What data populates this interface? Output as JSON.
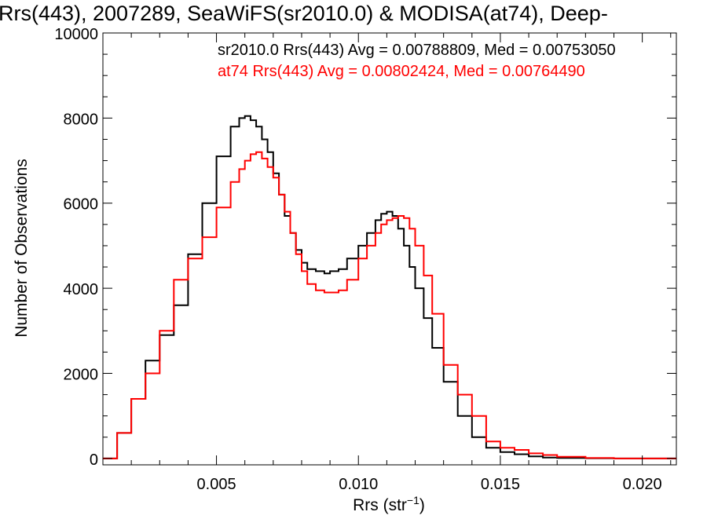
{
  "chart_data": {
    "type": "line",
    "title": "Rrs(443), 2007289, SeaWiFS(sr2010.0) & MODISA(at74), Deep-",
    "xlabel_main": "Rrs (str",
    "xlabel_sup": "−1",
    "xlabel_end": ")",
    "ylabel": "Number of Observations",
    "xlim": [
      0.001,
      0.0212
    ],
    "ylim": [
      -150,
      10000
    ],
    "xticks": [
      0.005,
      0.01,
      0.015,
      0.02
    ],
    "xtick_labels": [
      "0.005",
      "0.010",
      "0.015",
      "0.020"
    ],
    "yticks": [
      0,
      2000,
      4000,
      6000,
      8000,
      10000
    ],
    "ytick_labels": [
      "0",
      "2000",
      "4000",
      "6000",
      "8000",
      "10000"
    ],
    "grid": false,
    "legend_position": "top-right",
    "series": [
      {
        "name": "sr2010.0 Rrs(443) Avg = 0.00788809, Med = 0.00753050",
        "color": "#000000",
        "step": "post",
        "x": [
          0.001,
          0.0015,
          0.002,
          0.0025,
          0.003,
          0.0035,
          0.004,
          0.0045,
          0.005,
          0.0055,
          0.0058,
          0.006,
          0.0062,
          0.0064,
          0.0066,
          0.0068,
          0.007,
          0.0072,
          0.0074,
          0.0076,
          0.0078,
          0.008,
          0.0082,
          0.0085,
          0.0088,
          0.009,
          0.0093,
          0.0096,
          0.01,
          0.0103,
          0.0106,
          0.0108,
          0.011,
          0.0112,
          0.0114,
          0.0116,
          0.0118,
          0.012,
          0.0123,
          0.0126,
          0.013,
          0.0135,
          0.014,
          0.0145,
          0.015,
          0.0155,
          0.016,
          0.0165,
          0.017,
          0.018,
          0.019,
          0.02,
          0.0212
        ],
        "y": [
          0,
          600,
          1400,
          2300,
          2900,
          3600,
          4800,
          6000,
          7100,
          7800,
          8000,
          8050,
          7950,
          7800,
          7500,
          7200,
          6700,
          6200,
          5700,
          5300,
          4900,
          4600,
          4450,
          4400,
          4350,
          4400,
          4450,
          4700,
          5000,
          5300,
          5600,
          5750,
          5800,
          5700,
          5400,
          5000,
          4500,
          4000,
          3300,
          2600,
          1800,
          1000,
          500,
          250,
          150,
          100,
          50,
          20,
          10,
          5,
          0,
          0,
          0
        ]
      },
      {
        "name": "at74 Rrs(443) Avg = 0.00802424, Med = 0.00764490",
        "color": "#ff0000",
        "step": "post",
        "x": [
          0.001,
          0.0015,
          0.002,
          0.0025,
          0.003,
          0.0035,
          0.004,
          0.0045,
          0.005,
          0.0055,
          0.0058,
          0.006,
          0.0062,
          0.0064,
          0.0066,
          0.0068,
          0.007,
          0.0072,
          0.0074,
          0.0076,
          0.0078,
          0.008,
          0.0082,
          0.0085,
          0.0088,
          0.009,
          0.0093,
          0.0096,
          0.01,
          0.0103,
          0.0106,
          0.0108,
          0.011,
          0.0112,
          0.0114,
          0.0116,
          0.0118,
          0.012,
          0.0123,
          0.0126,
          0.013,
          0.0135,
          0.014,
          0.0145,
          0.015,
          0.0155,
          0.016,
          0.0165,
          0.017,
          0.018,
          0.019,
          0.02,
          0.0212
        ],
        "y": [
          0,
          600,
          1400,
          2000,
          3000,
          4200,
          4700,
          5200,
          5900,
          6500,
          6800,
          7000,
          7150,
          7200,
          7050,
          6850,
          6600,
          6200,
          5800,
          5300,
          4800,
          4400,
          4100,
          3950,
          3900,
          3900,
          3950,
          4200,
          4700,
          5000,
          5300,
          5500,
          5600,
          5650,
          5700,
          5650,
          5400,
          5000,
          4300,
          3400,
          2200,
          1500,
          1000,
          400,
          250,
          200,
          120,
          80,
          40,
          10,
          0,
          0,
          0
        ]
      }
    ]
  }
}
